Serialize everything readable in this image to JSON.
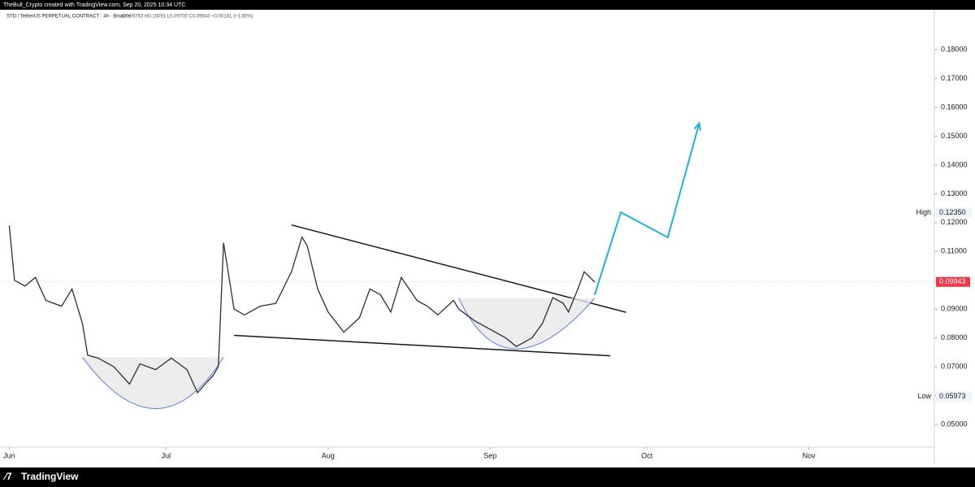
{
  "header": {
    "credit": "TheBull_Crypto created with TradingView.com, Sep 20, 2025 10:34 UTC",
    "symbol": "STD / TetherUS PERPETUAL CONTRACT · 4h · Binance",
    "ohlc": "O0.09763 H0.10091 L0.09700 C0.09943 +0.00181 (+1.85%)"
  },
  "footer": {
    "brand": "TradingView"
  },
  "chart_data": {
    "type": "line",
    "series": [
      {
        "name": "STD / TetherUS",
        "color": "#2a2e39",
        "x": [
          0,
          1,
          3,
          5,
          7,
          10,
          12,
          14,
          15,
          17,
          20,
          23,
          25,
          28,
          31,
          34,
          36,
          39,
          40,
          41,
          43,
          45,
          48,
          51,
          54,
          56,
          57,
          59,
          61,
          64,
          67,
          69,
          71,
          73,
          75,
          78,
          80,
          82,
          85,
          86,
          89,
          92,
          95,
          97,
          100,
          102,
          104,
          106,
          107,
          109,
          110,
          112
        ],
        "values": [
          0.119,
          0.1,
          0.098,
          0.101,
          0.093,
          0.091,
          0.097,
          0.085,
          0.074,
          0.073,
          0.07,
          0.064,
          0.071,
          0.069,
          0.073,
          0.069,
          0.061,
          0.067,
          0.07,
          0.113,
          0.09,
          0.088,
          0.091,
          0.092,
          0.103,
          0.115,
          0.112,
          0.097,
          0.089,
          0.082,
          0.087,
          0.097,
          0.095,
          0.089,
          0.101,
          0.093,
          0.091,
          0.088,
          0.093,
          0.09,
          0.086,
          0.083,
          0.08,
          0.077,
          0.08,
          0.085,
          0.094,
          0.092,
          0.089,
          0.098,
          0.103,
          0.0994
        ]
      }
    ],
    "xlim": [
      -1,
      177
    ],
    "xticks": [
      {
        "value": 0,
        "label": "Jun"
      },
      {
        "value": 30,
        "label": "Jul"
      },
      {
        "value": 61,
        "label": "Aug"
      },
      {
        "value": 92,
        "label": "Sep"
      },
      {
        "value": 122,
        "label": "Oct"
      },
      {
        "value": 153,
        "label": "Nov"
      }
    ],
    "ylim": [
      0.0421,
      0.1888
    ],
    "yticks": [
      {
        "value": 0.05,
        "label": "0.05000"
      },
      {
        "value": 0.06,
        "label": "0.06000"
      },
      {
        "value": 0.07,
        "label": "0.07000"
      },
      {
        "value": 0.08,
        "label": "0.08000"
      },
      {
        "value": 0.09,
        "label": "0.09000"
      },
      {
        "value": 0.1,
        "label": "0.10000"
      },
      {
        "value": 0.11,
        "label": "0.11000"
      },
      {
        "value": 0.12,
        "label": "0.12000"
      },
      {
        "value": 0.13,
        "label": "0.13000"
      },
      {
        "value": 0.14,
        "label": "0.14000"
      },
      {
        "value": 0.15,
        "label": "0.15000"
      },
      {
        "value": 0.16,
        "label": "0.16000"
      },
      {
        "value": 0.17,
        "label": "0.17000"
      },
      {
        "value": 0.18,
        "label": "0.18000"
      }
    ],
    "markers": [
      {
        "name": "High",
        "value": 0.1235,
        "label": "0.12350"
      },
      {
        "name": "Low",
        "value": 0.05973,
        "label": "0.05973"
      }
    ],
    "last_price": {
      "value": 0.09943,
      "label": "0.09943",
      "color": "#f23645"
    },
    "drawings": [
      {
        "kind": "trendline",
        "color": "#131722",
        "x": [
          54,
          118
        ],
        "y": [
          0.1192,
          0.0889
        ]
      },
      {
        "kind": "trendline",
        "color": "#131722",
        "x": [
          43,
          115
        ],
        "y": [
          0.0809,
          0.0738
        ]
      },
      {
        "kind": "cup",
        "color": "#5b7fd6",
        "x": [
          14,
          28,
          41
        ],
        "y": [
          0.0733,
          0.0555,
          0.0733
        ]
      },
      {
        "kind": "cup",
        "color": "#5b7fd6",
        "x": [
          86,
          97,
          112
        ],
        "y": [
          0.0938,
          0.0762,
          0.0938
        ]
      },
      {
        "kind": "projection",
        "color": "#1fb4d6",
        "x": [
          112,
          117,
          126,
          132
        ],
        "y": [
          0.0949,
          0.1236,
          0.1149,
          0.1545
        ]
      }
    ]
  }
}
